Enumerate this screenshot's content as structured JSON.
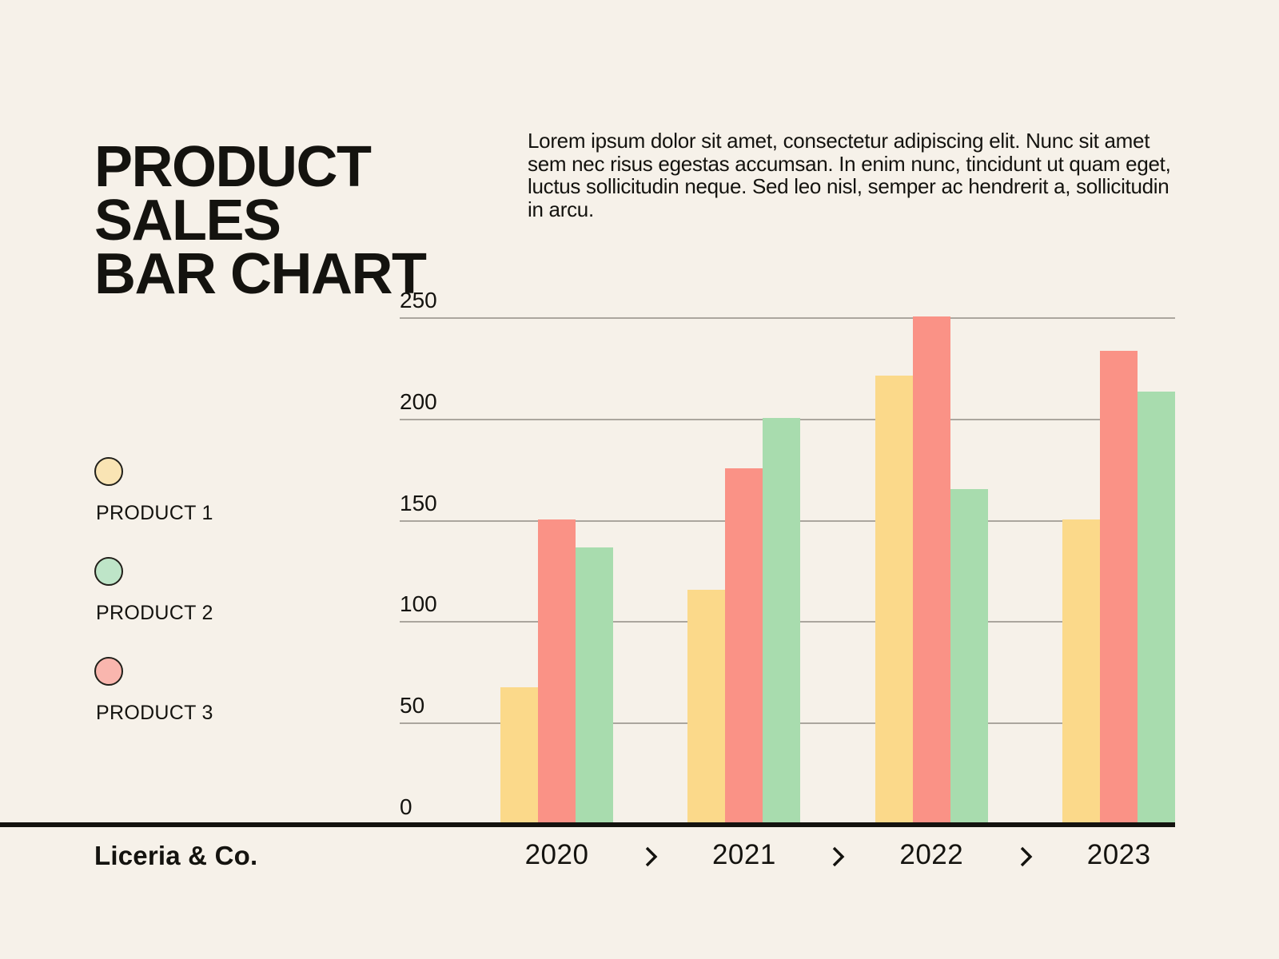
{
  "title": {
    "lines": [
      "PRODUCT",
      "SALES",
      "BAR CHART"
    ]
  },
  "description": "Lorem ipsum dolor sit amet, consectetur adipiscing elit. Nunc sit amet sem nec risus egestas accumsan. In enim nunc, tincidunt ut quam eget, luctus sollicitudin neque. Sed leo nisl, semper ac hendrerit a, sollicitudin in arcu.",
  "legend": {
    "items": [
      {
        "label": "PRODUCT 1",
        "swatch_color": "#F9E4B4"
      },
      {
        "label": "PRODUCT 2",
        "swatch_color": "#BEE5C8"
      },
      {
        "label": "PRODUCT 3",
        "swatch_color": "#F9B6AE"
      }
    ]
  },
  "footer": {
    "brand": "Liceria & Co."
  },
  "chart_data": {
    "type": "bar",
    "title": "PRODUCT SALES BAR CHART",
    "categories": [
      "2020",
      "2021",
      "2022",
      "2023"
    ],
    "series": [
      {
        "name": "PRODUCT 1",
        "color": "#FBD98A",
        "values": [
          67,
          115,
          221,
          150
        ]
      },
      {
        "name": "PRODUCT 2",
        "color": "#A8DCAE",
        "values": [
          136,
          200,
          165,
          213
        ]
      },
      {
        "name": "PRODUCT 3",
        "color": "#FA9286",
        "values": [
          150,
          175,
          250,
          233
        ]
      }
    ],
    "bar_order_in_group": [
      "PRODUCT 1",
      "PRODUCT 3",
      "PRODUCT 2"
    ],
    "xlabel": "",
    "ylabel": "",
    "ylim": [
      0,
      250
    ],
    "yticks": [
      0,
      50,
      100,
      150,
      200,
      250
    ],
    "grid": true,
    "legend_position": "left",
    "category_separator": "chevron",
    "ink_color": "#14130F",
    "background_color": "#F6F1E9",
    "gridline_color": "#98938B"
  }
}
